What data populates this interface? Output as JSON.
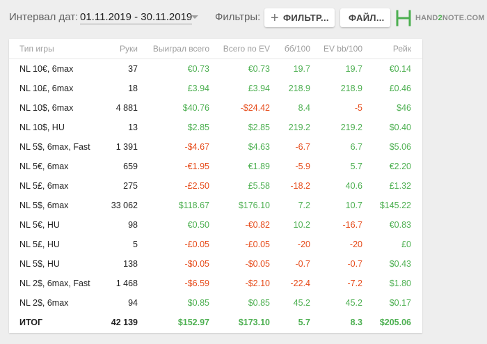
{
  "header": {
    "interval_label": "Интервал дат:",
    "date_range": "01.11.2019 - 30.11.2019",
    "filters_label": "Фильтры:",
    "filter_button": "ФИЛЬТР...",
    "file_button": "ФАЙЛ...",
    "logo_text_a": "HAND",
    "logo_text_b": "2",
    "logo_text_c": "NOTE.COM"
  },
  "colors": {
    "positive": "#4caf50",
    "negative": "#e64a19",
    "accent": "#4caf50"
  },
  "table": {
    "columns": [
      "Тип игры",
      "Руки",
      "Выиграл всего",
      "Всего по EV",
      "бб/100",
      "EV bb/100",
      "Рейк"
    ],
    "rows": [
      [
        "NL 10€, 6max",
        "37",
        "€0.73",
        "€0.73",
        "19.7",
        "19.7",
        "€0.14"
      ],
      [
        "NL 10£, 6max",
        "18",
        "£3.94",
        "£3.94",
        "218.9",
        "218.9",
        "£0.46"
      ],
      [
        "NL 10$, 6max",
        "4 881",
        "$40.76",
        "-$24.42",
        "8.4",
        "-5",
        "$46"
      ],
      [
        "NL 10$, HU",
        "13",
        "$2.85",
        "$2.85",
        "219.2",
        "219.2",
        "$0.40"
      ],
      [
        "NL 5$, 6max, Fast",
        "1 391",
        "-$4.67",
        "$4.63",
        "-6.7",
        "6.7",
        "$5.06"
      ],
      [
        "NL 5€, 6max",
        "659",
        "-€1.95",
        "€1.89",
        "-5.9",
        "5.7",
        "€2.20"
      ],
      [
        "NL 5£, 6max",
        "275",
        "-£2.50",
        "£5.58",
        "-18.2",
        "40.6",
        "£1.32"
      ],
      [
        "NL 5$, 6max",
        "33 062",
        "$118.67",
        "$176.10",
        "7.2",
        "10.7",
        "$145.22"
      ],
      [
        "NL 5€, HU",
        "98",
        "€0.50",
        "-€0.82",
        "10.2",
        "-16.7",
        "€0.83"
      ],
      [
        "NL 5£, HU",
        "5",
        "-£0.05",
        "-£0.05",
        "-20",
        "-20",
        "£0"
      ],
      [
        "NL 5$, HU",
        "138",
        "-$0.05",
        "-$0.05",
        "-0.7",
        "-0.7",
        "$0.43"
      ],
      [
        "NL 2$, 6max, Fast",
        "1 468",
        "-$6.59",
        "-$2.10",
        "-22.4",
        "-7.2",
        "$1.80"
      ],
      [
        "NL 2$, 6max",
        "94",
        "$0.85",
        "$0.85",
        "45.2",
        "45.2",
        "$0.17"
      ]
    ],
    "total": [
      "ИТОГ",
      "42 139",
      "$152.97",
      "$173.10",
      "5.7",
      "8.3",
      "$205.06"
    ]
  }
}
